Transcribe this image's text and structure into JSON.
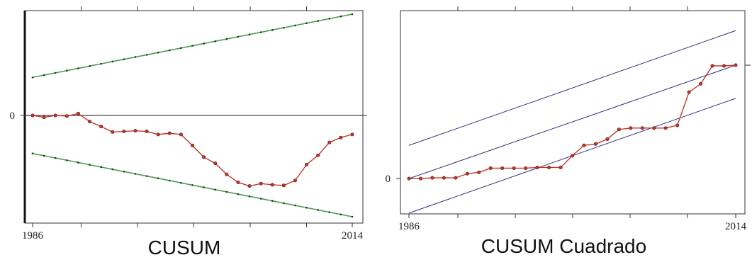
{
  "colors": {
    "series": "#c0392b",
    "band_green": "#4c9a4c",
    "band_blue": "#30307a",
    "frame": "#333333",
    "zero_line": "#444444"
  },
  "chart_data": [
    {
      "type": "line",
      "title": "CUSUM",
      "xlabel": "",
      "ylabel": "",
      "x_ticks": [
        "1986",
        "2014"
      ],
      "y_ticks": [
        "0"
      ],
      "xlim": [
        1986,
        2014
      ],
      "ylim": [
        -15,
        15
      ],
      "x": [
        1986,
        1987,
        1988,
        1989,
        1990,
        1991,
        1992,
        1993,
        1994,
        1995,
        1996,
        1997,
        1998,
        1999,
        2000,
        2001,
        2002,
        2003,
        2004,
        2005,
        2006,
        2007,
        2008,
        2009,
        2010,
        2011,
        2012,
        2013,
        2014
      ],
      "series": [
        {
          "values": [
            0,
            -0.3,
            0,
            -0.1,
            0.3,
            -1.0,
            -1.8,
            -2.7,
            -2.6,
            -2.5,
            -2.6,
            -3.1,
            -2.9,
            -3.1,
            -4.9,
            -6.8,
            -7.8,
            -9.6,
            -10.9,
            -11.5,
            -11.1,
            -11.3,
            -11.4,
            -10.6,
            -8.0,
            -6.5,
            -4.4,
            -3.6,
            -3.1
          ]
        }
      ],
      "bands": [
        {
          "x": [
            1986,
            2014
          ],
          "y": [
            6.2,
            16.5
          ]
        },
        {
          "x": [
            1986,
            2014
          ],
          "y": [
            -6.2,
            -16.5
          ]
        }
      ],
      "reference_line": 0,
      "grid": false,
      "legend": "none"
    },
    {
      "type": "line",
      "title": "CUSUM Cuadrado",
      "xlabel": "",
      "ylabel": "",
      "x_ticks": [
        "1986",
        "2014"
      ],
      "y_ticks": [
        "0"
      ],
      "xlim": [
        1986,
        2014
      ],
      "ylim": [
        -0.23,
        1.23
      ],
      "x": [
        1986,
        1987,
        1988,
        1989,
        1990,
        1991,
        1992,
        1993,
        1994,
        1995,
        1996,
        1997,
        1998,
        1999,
        2000,
        2001,
        2002,
        2003,
        2004,
        2005,
        2006,
        2007,
        2008,
        2009,
        2010,
        2011,
        2012,
        2013,
        2014
      ],
      "series": [
        {
          "values": [
            0,
            0,
            0.005,
            0.005,
            0.005,
            0.035,
            0.045,
            0.075,
            0.075,
            0.075,
            0.075,
            0.08,
            0.08,
            0.08,
            0.165,
            0.24,
            0.25,
            0.285,
            0.355,
            0.365,
            0.365,
            0.365,
            0.365,
            0.385,
            0.625,
            0.685,
            0.815,
            0.815,
            0.82
          ]
        }
      ],
      "bands": [
        {
          "x": [
            1986,
            2014
          ],
          "y": [
            0.24,
            1.07
          ]
        },
        {
          "x": [
            1986,
            2014
          ],
          "y": [
            0,
            0.82
          ]
        },
        {
          "x": [
            1986,
            2014
          ],
          "y": [
            -0.25,
            0.58
          ]
        }
      ],
      "reference_line": null,
      "grid": false,
      "legend": "none"
    }
  ]
}
